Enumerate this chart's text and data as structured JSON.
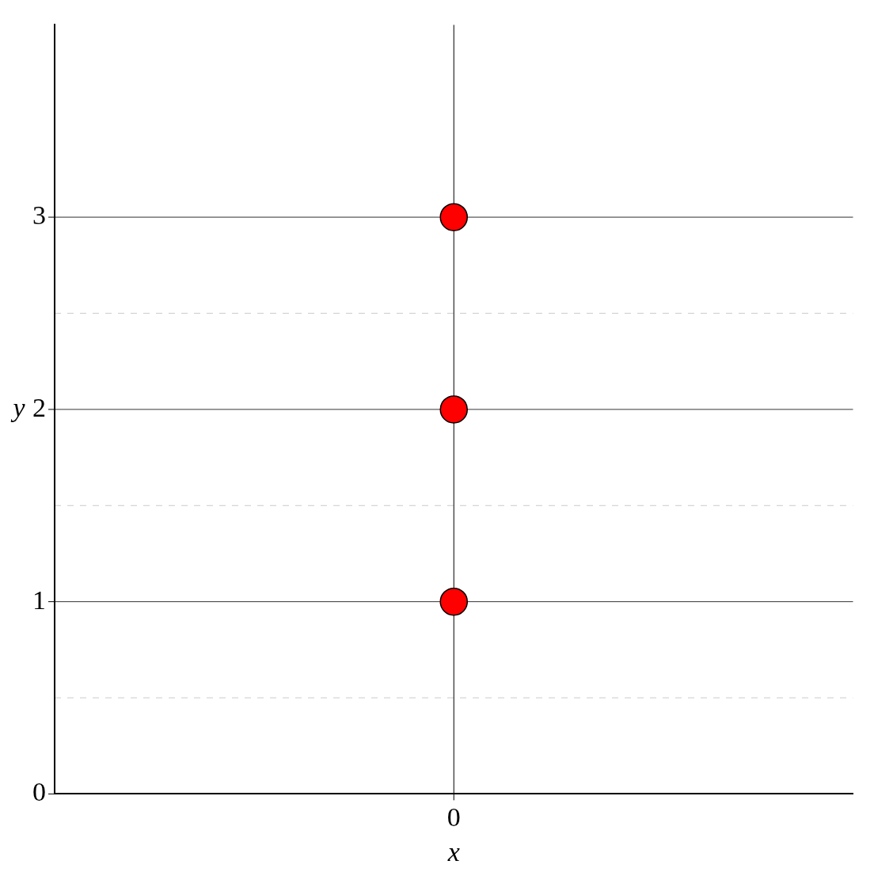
{
  "chart_data": {
    "type": "scatter",
    "xlabel": "x",
    "ylabel": "y",
    "categories": [
      "0"
    ],
    "series": [
      {
        "x": [
          "0",
          "0",
          "0"
        ],
        "values": [
          1,
          2,
          3
        ],
        "color": "#ff0000"
      }
    ],
    "ylim": [
      0,
      4
    ],
    "yticks": [
      0,
      {
        "value": 0.5,
        "label": null
      },
      1,
      {
        "value": 1.5,
        "label": null
      },
      2,
      {
        "value": 2.5,
        "label": null
      },
      3
    ],
    "grid": "y",
    "ref_lines": [
      {
        "axis": "x",
        "value": "0",
        "color": "#000000"
      }
    ],
    "marker": "circle",
    "legend": false
  }
}
